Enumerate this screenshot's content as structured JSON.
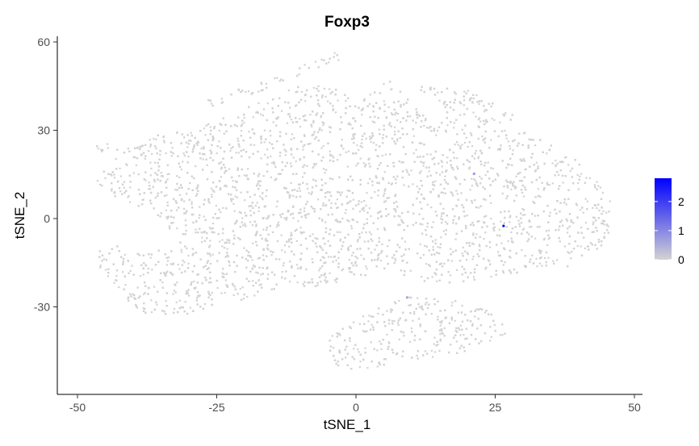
{
  "chart_data": {
    "type": "scatter",
    "title": "Foxp3",
    "xlabel": "tSNE_1",
    "ylabel": "tSNE_2",
    "xlim": [
      -52,
      52
    ],
    "ylim": [
      -56,
      61
    ],
    "xticks": [
      -50,
      -25,
      0,
      25,
      50
    ],
    "yticks": [
      -30,
      0,
      30,
      60
    ],
    "xtick_labels": [
      "-50",
      "-25",
      "0",
      "25",
      "50"
    ],
    "ytick_labels": [
      "-30",
      "0",
      "30",
      "60"
    ],
    "grid": false,
    "legend": {
      "placement": "right",
      "type": "colorbar",
      "ticks": [
        "0",
        "1",
        "2"
      ],
      "range": [
        0,
        2.8
      ],
      "low_color": "#d3d3d3",
      "high_color": "#0000ff"
    },
    "point_color_zero": "#d3d3d3",
    "expressing_cells": [
      {
        "x": 26.5,
        "y": -2.5,
        "value": 2.6
      },
      {
        "x": 21.2,
        "y": 15.2,
        "value": 0.8
      },
      {
        "x": 9.2,
        "y": -26.8,
        "value": 0.6
      }
    ],
    "cloud_regions": [
      {
        "x": [
          -50,
          46
        ],
        "y_min": [
          -49,
          -48,
          -43,
          -33,
          -30,
          -25,
          -24,
          -20,
          -16,
          -12,
          -9,
          -3,
          2,
          11,
          14,
          16,
          4,
          -5,
          -10,
          -14,
          -17
        ],
        "y_max": [
          27,
          23,
          26,
          31,
          29,
          37,
          43,
          43,
          48,
          43,
          47,
          44,
          47,
          47,
          44,
          47,
          41,
          33,
          29,
          21,
          4
        ]
      }
    ]
  }
}
